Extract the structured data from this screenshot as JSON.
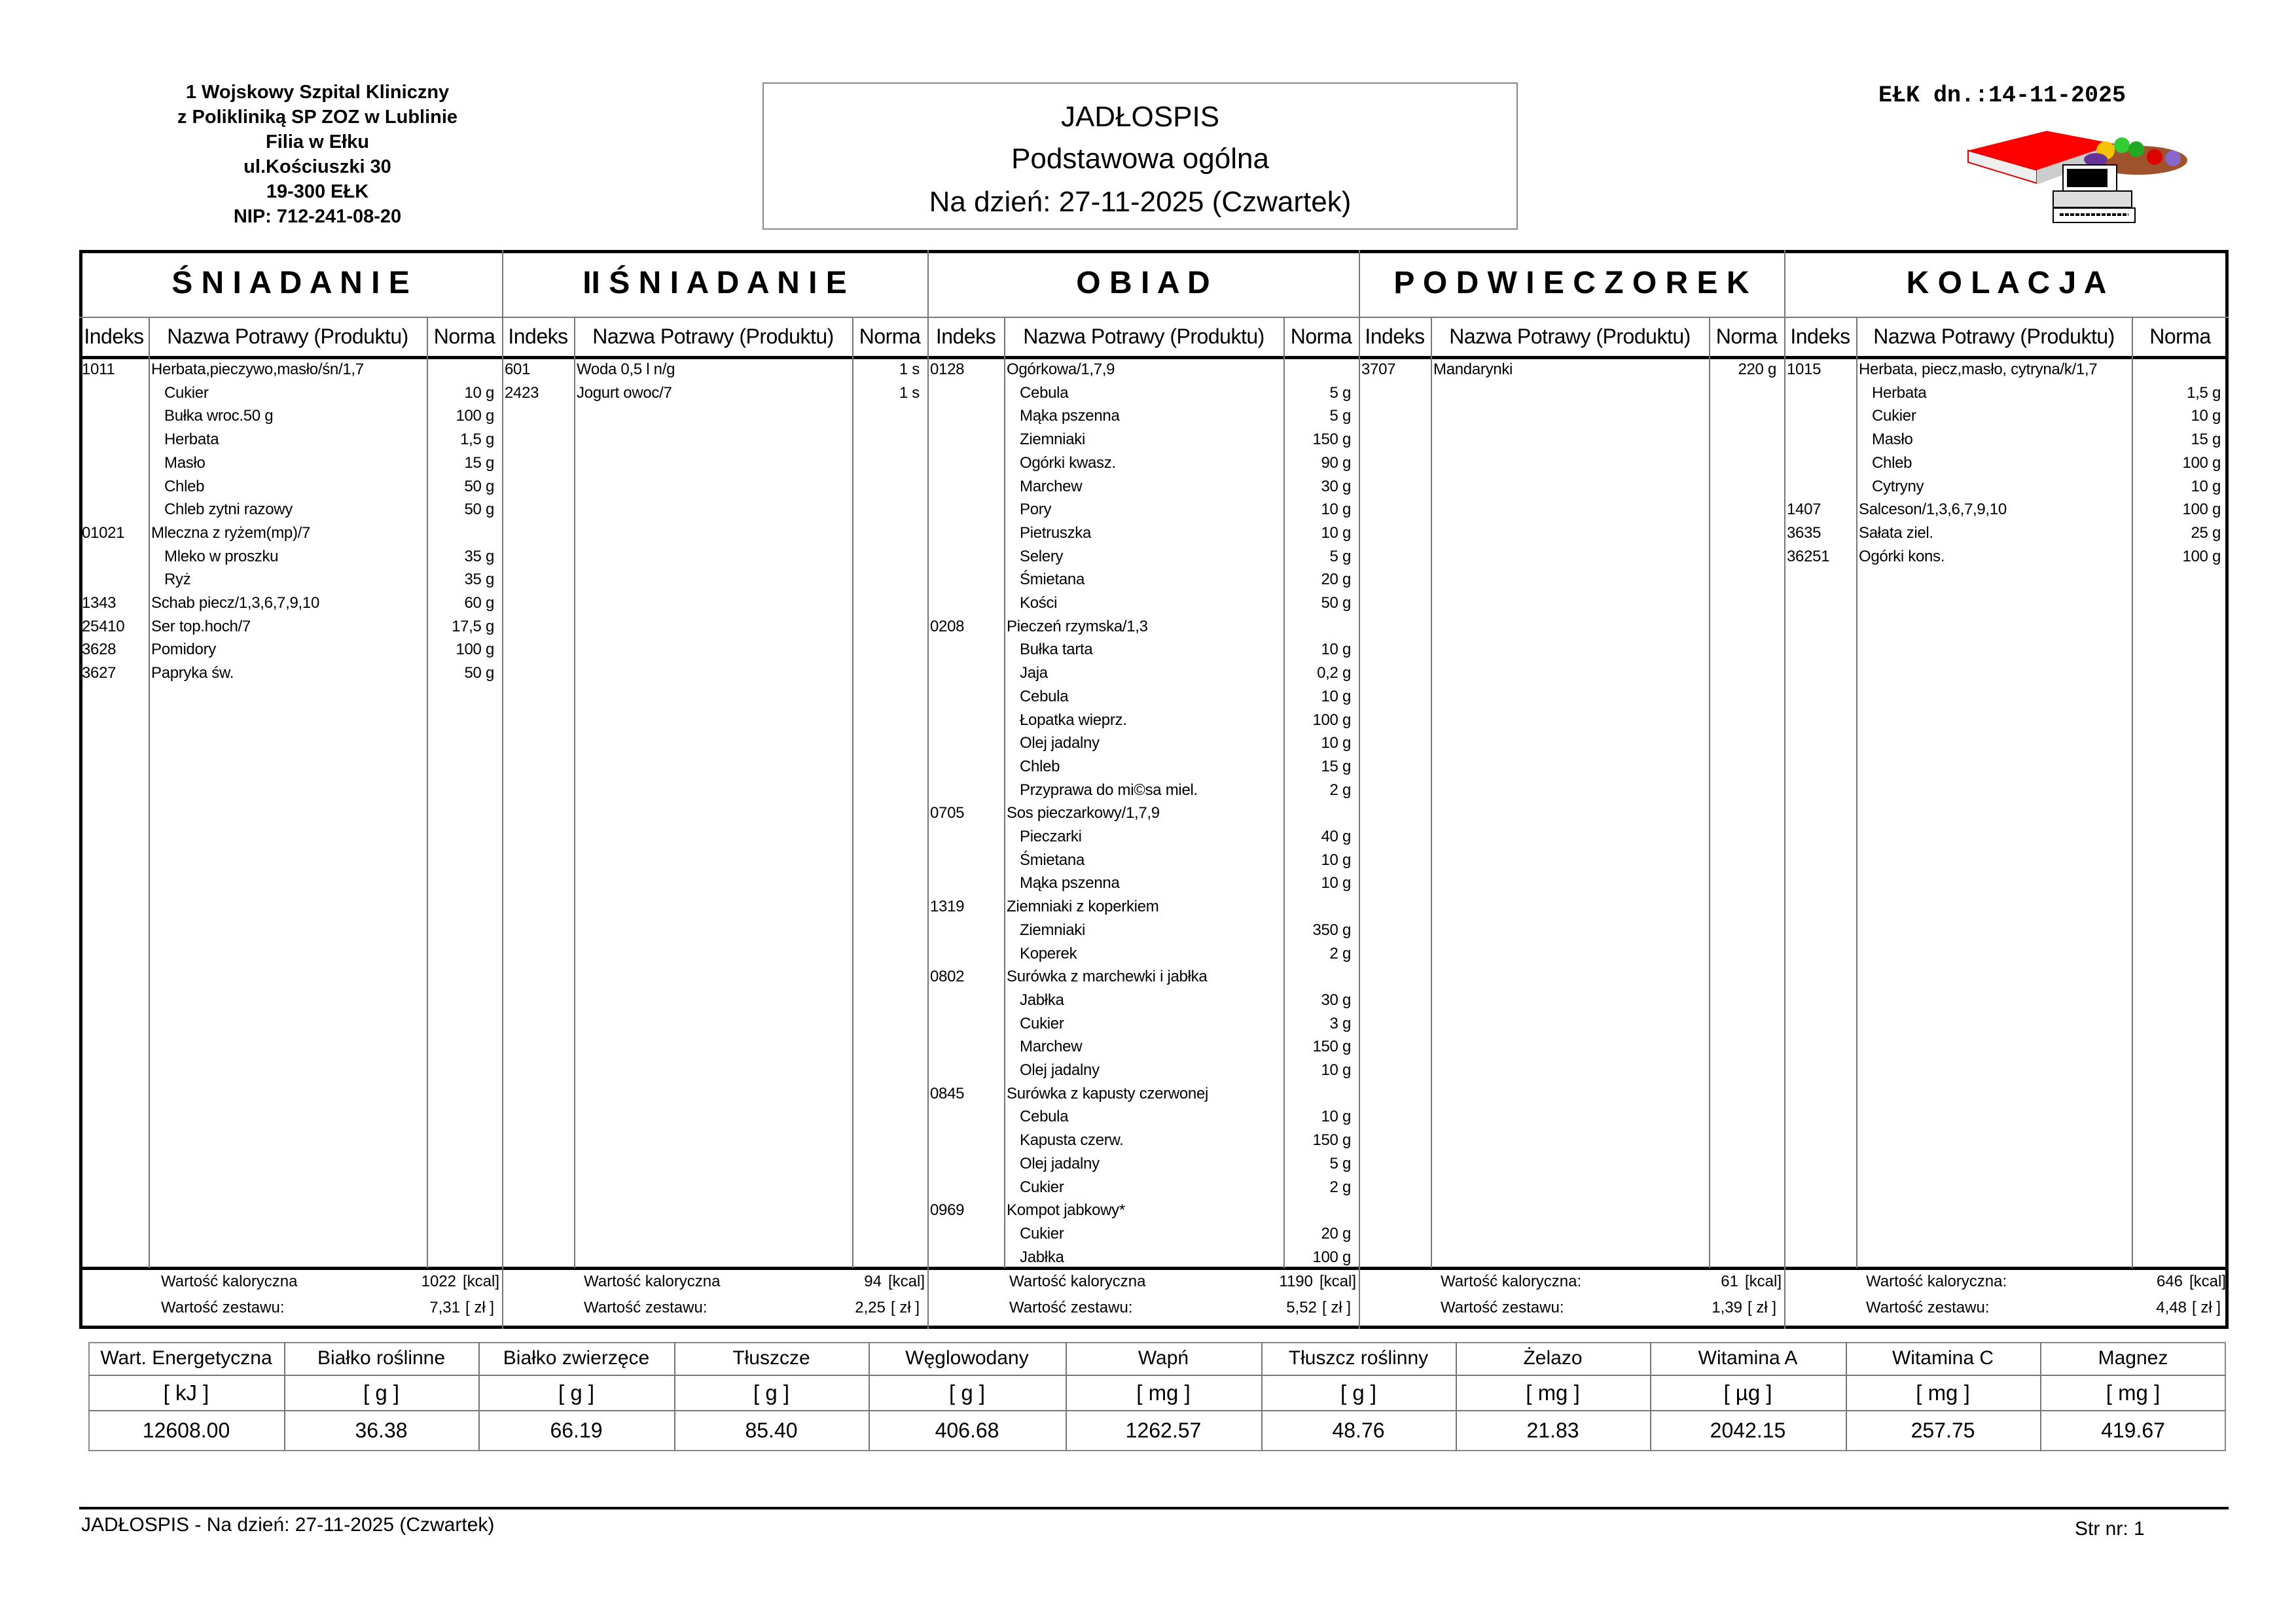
{
  "header": {
    "hospital_lines": [
      "1 Wojskowy Szpital Kliniczny",
      "z Polikliniką SP ZOZ w Lublinie",
      "Filia w Ełku",
      "ul.Kościuszki 30",
      "19-300 EŁK",
      "NIP: 712-241-08-20"
    ],
    "title": "JADŁOSPIS",
    "diet": "Podstawowa ogólna",
    "date_line": "Na dzień: 27-11-2025 (Czwartek)",
    "issued": "EŁK dn.:14-11-2025",
    "logo_icon": "book-fruit-basket-computer-icon"
  },
  "column_headers": {
    "index": "Indeks",
    "name": "Nazwa Potrawy (Produktu)",
    "norma": "Norma"
  },
  "summary_labels": {
    "kcal": "Wartość kaloryczna",
    "kcal_colon": "Wartość kaloryczna:",
    "cost": "Wartość zestawu:",
    "kcal_unit": "[kcal]",
    "cost_unit": "[ zł ]"
  },
  "meals": [
    {
      "title": "Ś N I A D A N I E",
      "kcal": "1022",
      "cost": "7,31",
      "colon": false,
      "items": [
        {
          "index": "1011",
          "name": "Herbata,pieczywo,masło/śn/1,7",
          "norma": ""
        },
        {
          "index": "",
          "name": "Cukier",
          "norma": "10 g",
          "sub": true
        },
        {
          "index": "",
          "name": "Bułka wroc.50 g",
          "norma": "100 g",
          "sub": true
        },
        {
          "index": "",
          "name": "Herbata",
          "norma": "1,5 g",
          "sub": true
        },
        {
          "index": "",
          "name": "Masło",
          "norma": "15 g",
          "sub": true
        },
        {
          "index": "",
          "name": "Chleb",
          "norma": "50 g",
          "sub": true
        },
        {
          "index": "",
          "name": "Chleb zytni razowy",
          "norma": "50 g",
          "sub": true
        },
        {
          "index": "01021",
          "name": "Mleczna z ryżem(mp)/7",
          "norma": ""
        },
        {
          "index": "",
          "name": "Mleko w proszku",
          "norma": "35 g",
          "sub": true
        },
        {
          "index": "",
          "name": "Ryż",
          "norma": "35 g",
          "sub": true
        },
        {
          "index": "1343",
          "name": "Schab piecz/1,3,6,7,9,10",
          "norma": "60 g"
        },
        {
          "index": "25410",
          "name": "Ser top.hoch/7",
          "norma": "17,5 g"
        },
        {
          "index": "3628",
          "name": "Pomidory",
          "norma": "100 g"
        },
        {
          "index": "3627",
          "name": "Papryka św.",
          "norma": "50 g"
        }
      ]
    },
    {
      "title": "II Ś N I A D A N I E",
      "kcal": "94",
      "cost": "2,25",
      "colon": false,
      "items": [
        {
          "index": "601",
          "name": "Woda 0,5 l n/g",
          "norma": "1 s"
        },
        {
          "index": "2423",
          "name": "Jogurt owoc/7",
          "norma": "1 s"
        }
      ]
    },
    {
      "title": "O B I A D",
      "kcal": "1190",
      "cost": "5,52",
      "colon": false,
      "items": [
        {
          "index": "0128",
          "name": "Ogórkowa/1,7,9",
          "norma": ""
        },
        {
          "index": "",
          "name": "Cebula",
          "norma": "5 g",
          "sub": true
        },
        {
          "index": "",
          "name": "Mąka pszenna",
          "norma": "5 g",
          "sub": true
        },
        {
          "index": "",
          "name": "Ziemniaki",
          "norma": "150 g",
          "sub": true
        },
        {
          "index": "",
          "name": "Ogórki kwasz.",
          "norma": "90 g",
          "sub": true
        },
        {
          "index": "",
          "name": "Marchew",
          "norma": "30 g",
          "sub": true
        },
        {
          "index": "",
          "name": "Pory",
          "norma": "10 g",
          "sub": true
        },
        {
          "index": "",
          "name": "Pietruszka",
          "norma": "10 g",
          "sub": true
        },
        {
          "index": "",
          "name": "Selery",
          "norma": "5 g",
          "sub": true
        },
        {
          "index": "",
          "name": "Śmietana",
          "norma": "20 g",
          "sub": true
        },
        {
          "index": "",
          "name": "Kości",
          "norma": "50 g",
          "sub": true
        },
        {
          "index": "0208",
          "name": "Pieczeń rzymska/1,3",
          "norma": ""
        },
        {
          "index": "",
          "name": "Bułka tarta",
          "norma": "10 g",
          "sub": true
        },
        {
          "index": "",
          "name": "Jaja",
          "norma": "0,2 g",
          "sub": true
        },
        {
          "index": "",
          "name": "Cebula",
          "norma": "10 g",
          "sub": true
        },
        {
          "index": "",
          "name": "Łopatka wieprz.",
          "norma": "100 g",
          "sub": true
        },
        {
          "index": "",
          "name": "Olej jadalny",
          "norma": "10 g",
          "sub": true
        },
        {
          "index": "",
          "name": "Chleb",
          "norma": "15 g",
          "sub": true
        },
        {
          "index": "",
          "name": "Przyprawa do mi©sa miel.",
          "norma": "2 g",
          "sub": true
        },
        {
          "index": "0705",
          "name": "Sos pieczarkowy/1,7,9",
          "norma": ""
        },
        {
          "index": "",
          "name": "Pieczarki",
          "norma": "40 g",
          "sub": true
        },
        {
          "index": "",
          "name": "Śmietana",
          "norma": "10 g",
          "sub": true
        },
        {
          "index": "",
          "name": "Mąka pszenna",
          "norma": "10 g",
          "sub": true
        },
        {
          "index": "1319",
          "name": "Ziemniaki z koperkiem",
          "norma": ""
        },
        {
          "index": "",
          "name": "Ziemniaki",
          "norma": "350 g",
          "sub": true
        },
        {
          "index": "",
          "name": "Koperek",
          "norma": "2 g",
          "sub": true
        },
        {
          "index": "0802",
          "name": "Surówka z marchewki i jabłka",
          "norma": ""
        },
        {
          "index": "",
          "name": "Jabłka",
          "norma": "30 g",
          "sub": true
        },
        {
          "index": "",
          "name": "Cukier",
          "norma": "3 g",
          "sub": true
        },
        {
          "index": "",
          "name": "Marchew",
          "norma": "150 g",
          "sub": true
        },
        {
          "index": "",
          "name": "Olej jadalny",
          "norma": "10 g",
          "sub": true
        },
        {
          "index": "0845",
          "name": "Surówka z kapusty czerwonej",
          "norma": ""
        },
        {
          "index": "",
          "name": "Cebula",
          "norma": "10 g",
          "sub": true
        },
        {
          "index": "",
          "name": "Kapusta czerw.",
          "norma": "150 g",
          "sub": true
        },
        {
          "index": "",
          "name": "Olej jadalny",
          "norma": "5 g",
          "sub": true
        },
        {
          "index": "",
          "name": "Cukier",
          "norma": "2 g",
          "sub": true
        },
        {
          "index": "0969",
          "name": "Kompot jabkowy*",
          "norma": ""
        },
        {
          "index": "",
          "name": "Cukier",
          "norma": "20 g",
          "sub": true
        },
        {
          "index": "",
          "name": "Jabłka",
          "norma": "100 g",
          "sub": true
        }
      ]
    },
    {
      "title": "P O D W I E C Z O R E K",
      "kcal": "61",
      "cost": "1,39",
      "colon": true,
      "items": [
        {
          "index": "3707",
          "name": "Mandarynki",
          "norma": "220 g"
        }
      ]
    },
    {
      "title": "K O L A C J A",
      "kcal": "646",
      "cost": "4,48",
      "colon": true,
      "items": [
        {
          "index": "1015",
          "name": "Herbata, piecz,masło, cytryna/k/1,7",
          "norma": ""
        },
        {
          "index": "",
          "name": "Herbata",
          "norma": "1,5 g",
          "sub": true
        },
        {
          "index": "",
          "name": "Cukier",
          "norma": "10 g",
          "sub": true
        },
        {
          "index": "",
          "name": "Masło",
          "norma": "15 g",
          "sub": true
        },
        {
          "index": "",
          "name": "Chleb",
          "norma": "100 g",
          "sub": true
        },
        {
          "index": "",
          "name": "Cytryny",
          "norma": "10 g",
          "sub": true
        },
        {
          "index": "1407",
          "name": "Salceson/1,3,6,7,9,10",
          "norma": "100 g"
        },
        {
          "index": "3635",
          "name": "Sałata ziel.",
          "norma": "25 g"
        },
        {
          "index": "36251",
          "name": "Ogórki kons.",
          "norma": "100 g"
        }
      ]
    }
  ],
  "nutrition": {
    "headers": [
      "Wart. Energetyczna",
      "Białko roślinne",
      "Białko zwierzęce",
      "Tłuszcze",
      "Węglowodany",
      "Wapń",
      "Tłuszcz roślinny",
      "Żelazo",
      "Witamina A",
      "Witamina C",
      "Magnez"
    ],
    "units": [
      "[ kJ ]",
      "[ g ]",
      "[ g ]",
      "[ g ]",
      "[ g ]",
      "[ mg ]",
      "[ g ]",
      "[ mg ]",
      "[ µg ]",
      "[ mg ]",
      "[ mg ]"
    ],
    "values": [
      "12608.00",
      "36.38",
      "66.19",
      "85.40",
      "406.68",
      "1262.57",
      "48.76",
      "21.83",
      "2042.15",
      "257.75",
      "419.67"
    ]
  },
  "footer": {
    "left": "JADŁOSPIS - Na dzień: 27-11-2025 (Czwartek)",
    "page": "Str nr: 1"
  }
}
